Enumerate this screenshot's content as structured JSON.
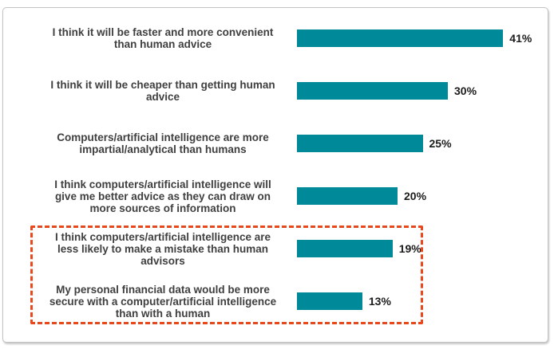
{
  "chart_data": {
    "type": "bar",
    "orientation": "horizontal",
    "title": "",
    "categories": [
      "I think it will be faster and more convenient than human advice",
      "I think it will be cheaper than getting human advice",
      "Computers/artificial intelligence are more impartial/analytical than humans",
      "I think computers/artificial intelligence will give me better advice as they can draw on more sources of information",
      "I think computers/artificial intelligence are less likely to make a mistake than human advisors",
      "My personal financial data would be more secure with a computer/artificial intelligence than with a human"
    ],
    "values": [
      41,
      30,
      25,
      20,
      19,
      13
    ],
    "value_labels": [
      "41%",
      "30%",
      "25%",
      "20%",
      "19%",
      "13%"
    ],
    "xlim": [
      0,
      45
    ],
    "grid": false,
    "legend": false,
    "bar_color": "#008a99",
    "label_color": "#3f3f3f",
    "value_color": "#1c1c1c",
    "highlight": {
      "rows": [
        4,
        5
      ],
      "style": "dashed-box",
      "color": "#e8481c"
    }
  },
  "display": {
    "labels_wrapped": [
      "I think it will be faster and more convenient\nthan human advice",
      "I think it will be cheaper than getting human\nadvice",
      "Computers/artificial intelligence are more\nimpartial/analytical than humans",
      "I think computers/artificial intelligence will\ngive me better advice as they can draw on\nmore sources of information",
      "I think computers/artificial intelligence are\nless likely to make a mistake than human\nadvisors",
      "My personal financial data would be more\nsecure with a computer/artificial intelligence\nthan with a human"
    ]
  }
}
